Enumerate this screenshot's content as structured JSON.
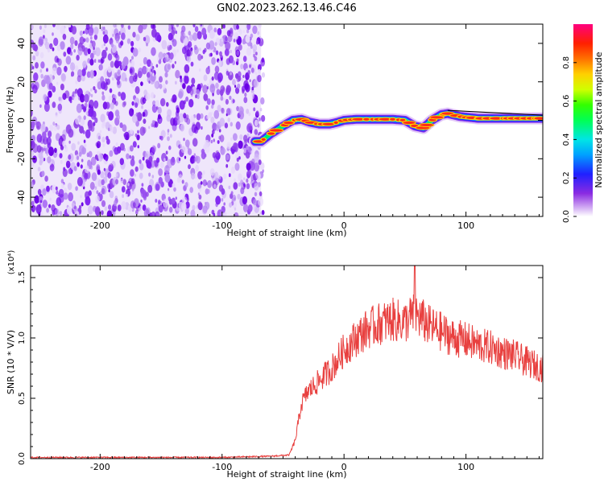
{
  "title": "GN02.2023.262.13.46.C46",
  "chart_data": [
    {
      "type": "heatmap",
      "xlabel": "Height of straight line (km)",
      "ylabel": "Frequency (Hz)",
      "xlim": [
        -257,
        163
      ],
      "ylim": [
        -50,
        50
      ],
      "xticks": [
        -200,
        -100,
        0,
        100
      ],
      "yticks": [
        -40,
        -20,
        0,
        20,
        40
      ],
      "colorbar": {
        "label": "Normalized spectral amplitude",
        "range": [
          0,
          1
        ],
        "ticks": [
          "0.0",
          "0.2",
          "0.4",
          "0.6",
          "0.8"
        ],
        "tick_values": [
          0,
          0.2,
          0.4,
          0.6,
          0.8
        ]
      },
      "noise_region_x": [
        -257,
        -68
      ],
      "ridge": {
        "x": [
          -73,
          -68,
          -60,
          -50,
          -42,
          -35,
          -28,
          -20,
          -12,
          -5,
          0,
          10,
          20,
          30,
          40,
          50,
          58,
          65,
          72,
          80,
          85,
          95,
          110,
          130,
          150,
          163
        ],
        "y": [
          -11,
          -11,
          -7,
          -3,
          0,
          0.5,
          -1,
          -2,
          -2,
          -1,
          0,
          0.5,
          0.5,
          0.5,
          0.5,
          0,
          -3,
          -4,
          0,
          3,
          3.5,
          2,
          1,
          1,
          1,
          1
        ]
      }
    },
    {
      "type": "line",
      "xlabel": "Height of straight line (km)",
      "ylabel": "SNR (10 * V/V)",
      "y_multiplier": "(x10⁴)",
      "xlim": [
        -257,
        163
      ],
      "ylim": [
        0,
        1.6
      ],
      "xticks": [
        -200,
        -100,
        0,
        100
      ],
      "yticks": [
        "0.0",
        "0.5",
        "1.0",
        "1.5"
      ],
      "ytick_values": [
        0,
        0.5,
        1.0,
        1.5
      ],
      "color": "#e8403f",
      "envelope": {
        "x": [
          -257,
          -100,
          -60,
          -45,
          -40,
          -35,
          -30,
          -20,
          -10,
          0,
          10,
          20,
          30,
          40,
          50,
          58,
          70,
          80,
          90,
          100,
          110,
          120,
          130,
          140,
          150,
          163
        ],
        "y": [
          0.01,
          0.01,
          0.02,
          0.03,
          0.15,
          0.45,
          0.55,
          0.65,
          0.75,
          0.9,
          1.0,
          1.08,
          1.12,
          1.15,
          1.13,
          1.2,
          1.1,
          1.05,
          1.0,
          0.98,
          0.94,
          0.92,
          0.88,
          0.85,
          0.8,
          0.75
        ]
      },
      "peak": {
        "x": 58,
        "y": 1.6
      }
    }
  ]
}
